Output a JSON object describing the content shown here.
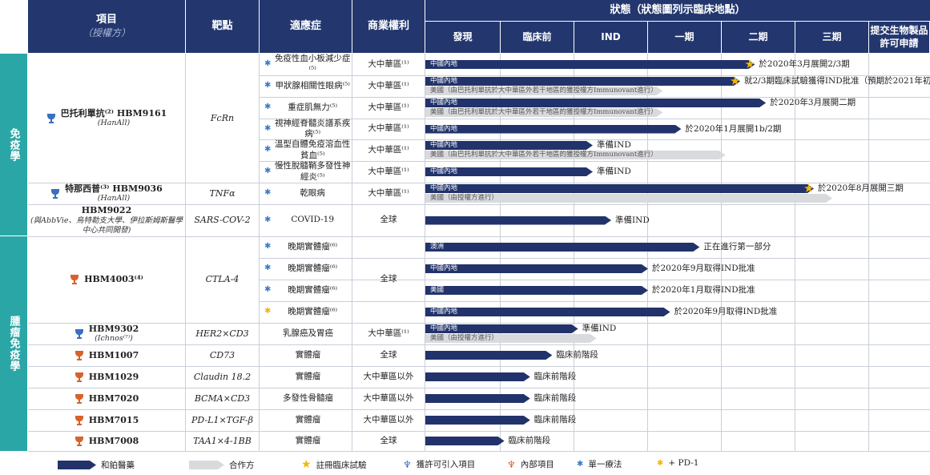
{
  "headers": {
    "project": "項目",
    "project_sub": "（授權方）",
    "target": "靶點",
    "indication": "適應症",
    "rights": "商業權利",
    "status": "狀態（狀態圖列示臨床地點）",
    "phases": [
      "發現",
      "臨床前",
      "IND",
      "一期",
      "二期",
      "三期",
      "提交生物製品\n許可申請"
    ]
  },
  "categories": [
    "免疫學",
    "腫瘤免疫學"
  ],
  "drugs": [
    {
      "name": "巴托利單抗⁽²⁾ HBM9161",
      "licensor": "(HanAll)",
      "target": "FcRn",
      "icon": "blue-trophy-icon"
    },
    {
      "name": "特那西普⁽³⁾ HBM9036",
      "licensor": "(HanAll)",
      "target": "TNFα",
      "icon": "blue-trophy-icon"
    },
    {
      "name": "HBM9022",
      "licensor": "(與AbbVie、烏特勒支大學、伊拉斯姆斯醫學中心共同開發)",
      "target": "SARS-COV-2",
      "icon": ""
    },
    {
      "name": "HBM4003⁽⁴⁾",
      "licensor": "",
      "target": "CTLA-4",
      "icon": "orange-trophy-icon"
    },
    {
      "name": "HBM9302",
      "licensor": "(Ichnos⁽⁷⁾)",
      "target": "HER2×CD3",
      "icon": "blue-trophy-icon"
    },
    {
      "name": "HBM1007",
      "licensor": "",
      "target": "CD73",
      "icon": "orange-trophy-icon"
    },
    {
      "name": "HBM1029",
      "licensor": "",
      "target": "Claudin 18.2",
      "icon": "orange-trophy-icon"
    },
    {
      "name": "HBM7020",
      "licensor": "",
      "target": "BCMA×CD3",
      "icon": "orange-trophy-icon"
    },
    {
      "name": "HBM7015",
      "licensor": "",
      "target": "PD-L1×TGF-β",
      "icon": "orange-trophy-icon"
    },
    {
      "name": "HBM7008",
      "licensor": "",
      "target": "TAA1×4-1BB",
      "icon": "orange-trophy-icon"
    }
  ],
  "indications": [
    {
      "text": "免疫性血小板減少症⁽⁵⁾",
      "marker": "blue",
      "rights": "大中華區⁽¹⁾"
    },
    {
      "text": "甲狀腺相關性眼病⁽⁵⁾",
      "marker": "blue",
      "rights": "大中華區⁽¹⁾"
    },
    {
      "text": "重症肌無力⁽⁵⁾",
      "marker": "blue",
      "rights": "大中華區⁽¹⁾"
    },
    {
      "text": "視神經脊髓炎譜系疾病⁽⁵⁾",
      "marker": "blue",
      "rights": "大中華區⁽¹⁾"
    },
    {
      "text": "溫型自體免疫溶血性貧血⁽⁵⁾",
      "marker": "blue",
      "rights": "大中華區⁽¹⁾"
    },
    {
      "text": "慢性脫髓鞘多發性神經炎⁽⁵⁾",
      "marker": "blue",
      "rights": "大中華區⁽¹⁾"
    },
    {
      "text": "乾眼病",
      "marker": "blue",
      "rights": "大中華區⁽¹⁾"
    },
    {
      "text": "COVID-19",
      "marker": "blue",
      "rights": "全球"
    },
    {
      "text": "晚期實體瘤⁽⁶⁾",
      "marker": "blue",
      "rights": ""
    },
    {
      "text": "晚期實體瘤⁽⁶⁾",
      "marker": "blue",
      "rights": ""
    },
    {
      "text": "晚期實體瘤⁽⁶⁾",
      "marker": "blue",
      "rights": ""
    },
    {
      "text": "晚期實體瘤⁽⁶⁾",
      "marker": "yellow",
      "rights": ""
    },
    {
      "text": "乳腺癌及胃癌",
      "marker": "",
      "rights": "大中華區⁽¹⁾"
    },
    {
      "text": "實體瘤",
      "marker": "",
      "rights": "全球"
    },
    {
      "text": "實體瘤",
      "marker": "",
      "rights": "大中華區以外"
    },
    {
      "text": "多發性骨髓瘤",
      "marker": "",
      "rights": "大中華區以外"
    },
    {
      "text": "實體瘤",
      "marker": "",
      "rights": "大中華區以外"
    },
    {
      "text": "實體瘤",
      "marker": "",
      "rights": "全球"
    }
  ],
  "hbm4003_rights": "全球",
  "chart_data": {
    "type": "table",
    "phases": [
      "發現",
      "臨床前",
      "IND",
      "一期",
      "二期",
      "三期",
      "提交生物製品許可申請"
    ],
    "bars": [
      {
        "row": 0,
        "kind": "own",
        "label": "中國內地",
        "progress": 4.45,
        "star": true,
        "note": "於2020年3月展開2/3期"
      },
      {
        "row": 1,
        "kind": "own",
        "label": "中國內地",
        "progress": 4.25,
        "star": true,
        "note": "就2/3期臨床試驗獲得IND批准（預期於2021年初）"
      },
      {
        "row": 1,
        "kind": "partner",
        "label": "美國（由巴托利單抗於大中華區外若干地區的獲授權方Immunovant進行）",
        "progress": 3.2,
        "star": false,
        "note": ""
      },
      {
        "row": 2,
        "kind": "own",
        "label": "中國內地",
        "progress": 4.6,
        "star": false,
        "note": "於2020年3月展開二期"
      },
      {
        "row": 2,
        "kind": "partner",
        "label": "美國（由巴托利單抗於大中華區外若干地區的獲授權方Immunovant進行）",
        "progress": 3.2,
        "star": false,
        "note": ""
      },
      {
        "row": 3,
        "kind": "own",
        "label": "中國內地",
        "progress": 3.45,
        "star": false,
        "note": "於2020年1月展開1b/2期"
      },
      {
        "row": 4,
        "kind": "own",
        "label": "中國內地",
        "progress": 2.25,
        "star": false,
        "note": "準備IND"
      },
      {
        "row": 4,
        "kind": "partner",
        "label": "美國（由巴托利單抗於大中華區外若干地區的獲授權方Immunovant進行）",
        "progress": 4.05,
        "star": false,
        "note": ""
      },
      {
        "row": 5,
        "kind": "own",
        "label": "中國內地",
        "progress": 2.25,
        "star": false,
        "note": "準備IND"
      },
      {
        "row": 6,
        "kind": "own",
        "label": "中國內地",
        "progress": 5.25,
        "star": true,
        "note": "於2020年8月展開三期"
      },
      {
        "row": 6,
        "kind": "partner",
        "label": "美國（由授權方進行）",
        "progress": 5.5,
        "star": false,
        "note": ""
      },
      {
        "row": 7,
        "kind": "own",
        "label": "",
        "progress": 2.5,
        "star": false,
        "note": "準備IND"
      },
      {
        "row": 8,
        "kind": "own",
        "label": "澳洲",
        "progress": 3.7,
        "star": false,
        "note": "正在進行第一部分"
      },
      {
        "row": 9,
        "kind": "own",
        "label": "中國內地",
        "progress": 3.0,
        "star": false,
        "note": "於2020年9月取得IND批准"
      },
      {
        "row": 10,
        "kind": "own",
        "label": "美國",
        "progress": 3.0,
        "star": false,
        "note": "於2020年1月取得IND批准"
      },
      {
        "row": 11,
        "kind": "own",
        "label": "中國內地",
        "progress": 3.3,
        "star": false,
        "note": "於2020年9月取得IND批准"
      },
      {
        "row": 12,
        "kind": "own",
        "label": "中國內地",
        "progress": 2.05,
        "star": false,
        "note": "準備IND"
      },
      {
        "row": 12,
        "kind": "partner",
        "label": "美國（由授權方進行）",
        "progress": 2.3,
        "star": false,
        "note": ""
      },
      {
        "row": 13,
        "kind": "own",
        "label": "",
        "progress": 1.7,
        "star": false,
        "note": "臨床前階段"
      },
      {
        "row": 14,
        "kind": "own",
        "label": "",
        "progress": 1.4,
        "star": false,
        "note": "臨床前階段"
      },
      {
        "row": 15,
        "kind": "own",
        "label": "",
        "progress": 1.4,
        "star": false,
        "note": "臨床前階段"
      },
      {
        "row": 16,
        "kind": "own",
        "label": "",
        "progress": 1.4,
        "star": false,
        "note": "臨床前階段"
      },
      {
        "row": 17,
        "kind": "own",
        "label": "",
        "progress": 1.05,
        "star": false,
        "note": "臨床前階段"
      }
    ]
  },
  "legend": {
    "own": "和鉑醫藥",
    "partner": "合作方",
    "star": "註冊臨床試驗",
    "licensed": "獲許可引入項目",
    "internal": "內部項目",
    "mono": "單一療法",
    "pd1": "+ PD-1"
  },
  "colors": {
    "navy": "#23376e",
    "teal": "#2ba6a7",
    "partner": "#d9dadd",
    "star": "#f2b705",
    "blue_marker": "#3a7bc8",
    "orange_trophy": "#d9622b"
  }
}
